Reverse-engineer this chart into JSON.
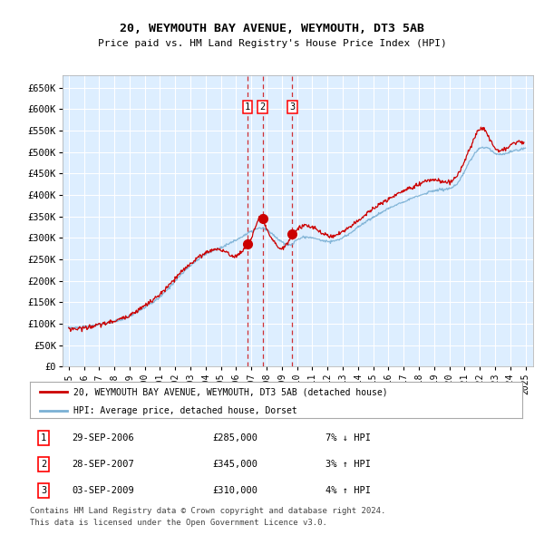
{
  "title": "20, WEYMOUTH BAY AVENUE, WEYMOUTH, DT3 5AB",
  "subtitle": "Price paid vs. HM Land Registry's House Price Index (HPI)",
  "legend_line1": "20, WEYMOUTH BAY AVENUE, WEYMOUTH, DT3 5AB (detached house)",
  "legend_line2": "HPI: Average price, detached house, Dorset",
  "footer1": "Contains HM Land Registry data © Crown copyright and database right 2024.",
  "footer2": "This data is licensed under the Open Government Licence v3.0.",
  "hpi_color": "#7ab0d4",
  "price_color": "#cc0000",
  "bg_color": "#ddeeff",
  "grid_color": "#ffffff",
  "sale_prices": [
    285000,
    345000,
    310000
  ],
  "sale_labels": [
    "1",
    "2",
    "3"
  ],
  "annotations": [
    {
      "label": "1",
      "date": "29-SEP-2006",
      "price": "£285,000",
      "hpi_rel": "7% ↓ HPI"
    },
    {
      "label": "2",
      "date": "28-SEP-2007",
      "price": "£345,000",
      "hpi_rel": "3% ↑ HPI"
    },
    {
      "label": "3",
      "date": "03-SEP-2009",
      "price": "£310,000",
      "hpi_rel": "4% ↑ HPI"
    }
  ],
  "ylim": [
    0,
    680000
  ],
  "yticks": [
    0,
    50000,
    100000,
    150000,
    200000,
    250000,
    300000,
    350000,
    400000,
    450000,
    500000,
    550000,
    600000,
    650000
  ],
  "ytick_labels": [
    "£0",
    "£50K",
    "£100K",
    "£150K",
    "£200K",
    "£250K",
    "£300K",
    "£350K",
    "£400K",
    "£450K",
    "£500K",
    "£550K",
    "£600K",
    "£650K"
  ],
  "hpi_anchors_t": [
    1995.0,
    1996.0,
    1997.0,
    1998.0,
    1999.0,
    2000.0,
    2001.0,
    2002.0,
    2003.0,
    2004.0,
    2005.0,
    2006.0,
    2007.0,
    2007.75,
    2008.5,
    2009.0,
    2009.5,
    2010.0,
    2011.0,
    2012.0,
    2013.0,
    2014.0,
    2015.0,
    2016.0,
    2017.0,
    2018.0,
    2019.0,
    2020.0,
    2020.5,
    2021.0,
    2021.5,
    2022.0,
    2022.5,
    2023.0,
    2023.5,
    2024.0,
    2024.5,
    2025.0
  ],
  "hpi_anchors_v": [
    91000,
    92000,
    98000,
    105000,
    118000,
    138000,
    162000,
    200000,
    235000,
    262000,
    278000,
    295000,
    315000,
    322000,
    305000,
    290000,
    283000,
    295000,
    300000,
    292000,
    300000,
    325000,
    348000,
    368000,
    385000,
    398000,
    410000,
    415000,
    425000,
    455000,
    488000,
    508000,
    510000,
    498000,
    495000,
    500000,
    505000,
    510000
  ],
  "price_anchors_t": [
    1995.0,
    1996.0,
    1997.0,
    1998.0,
    1999.0,
    2000.0,
    2001.0,
    2002.0,
    2003.0,
    2004.0,
    2005.0,
    2006.0,
    2006.75,
    2007.0,
    2007.75,
    2008.0,
    2008.5,
    2009.0,
    2009.75,
    2010.0,
    2011.0,
    2012.0,
    2013.0,
    2014.0,
    2015.0,
    2016.0,
    2017.0,
    2018.0,
    2019.0,
    2020.0,
    2020.5,
    2021.0,
    2021.5,
    2022.0,
    2022.5,
    2023.0,
    2023.5,
    2024.0,
    2024.5,
    2024.9
  ],
  "price_anchors_v": [
    88000,
    90000,
    97000,
    106000,
    120000,
    142000,
    168000,
    205000,
    240000,
    265000,
    272000,
    258000,
    285000,
    300000,
    345000,
    320000,
    290000,
    275000,
    310000,
    320000,
    325000,
    305000,
    315000,
    340000,
    368000,
    390000,
    410000,
    425000,
    435000,
    430000,
    445000,
    480000,
    520000,
    555000,
    540000,
    510000,
    505000,
    515000,
    525000,
    520000
  ],
  "sale_t": [
    2006.747,
    2007.747,
    2009.672
  ],
  "xlim_min": 1994.6,
  "xlim_max": 2025.5
}
